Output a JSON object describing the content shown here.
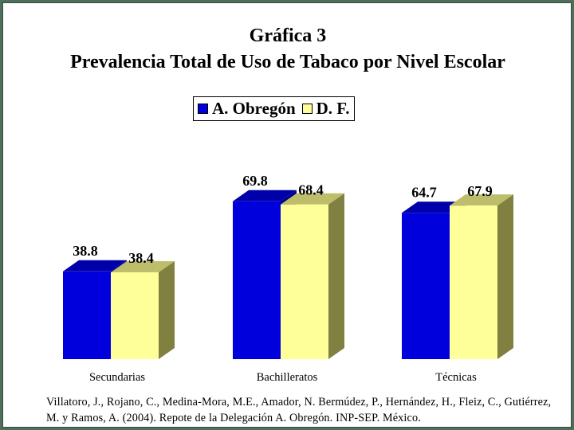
{
  "chart_data": {
    "type": "bar",
    "title": "Gráfica 3",
    "subtitle": "Prevalencia Total de Uso de Tabaco por Nivel Escolar",
    "categories": [
      "Secundarias",
      "Bachilleratos",
      "Técnicas"
    ],
    "series": [
      {
        "name": "A. Obregón",
        "values": [
          38.8,
          69.8,
          64.7
        ],
        "color": "#0000dd",
        "side_color": "#000088",
        "top_color": "#0000aa"
      },
      {
        "name": "D. F.",
        "values": [
          38.4,
          68.4,
          67.9
        ],
        "color": "#ffff99",
        "side_color": "#808040",
        "top_color": "#bdbd6c"
      }
    ],
    "value_labels": [
      [
        "38.8",
        "69.8",
        "64.7"
      ],
      [
        "38.4",
        "68.4",
        "67.9"
      ]
    ],
    "ylim": [
      0,
      100
    ],
    "grid": false,
    "legend_position": "top-center",
    "xlabel": "",
    "ylabel": ""
  },
  "citation": "Villatoro, J., Rojano, C., Medina-Mora, M.E., Amador, N. Bermúdez, P., Hernández, H., Fleiz, C., Gutiérrez, M. y Ramos, A. (2004). Repote de la Delegación A. Obregón. INP-SEP. México."
}
